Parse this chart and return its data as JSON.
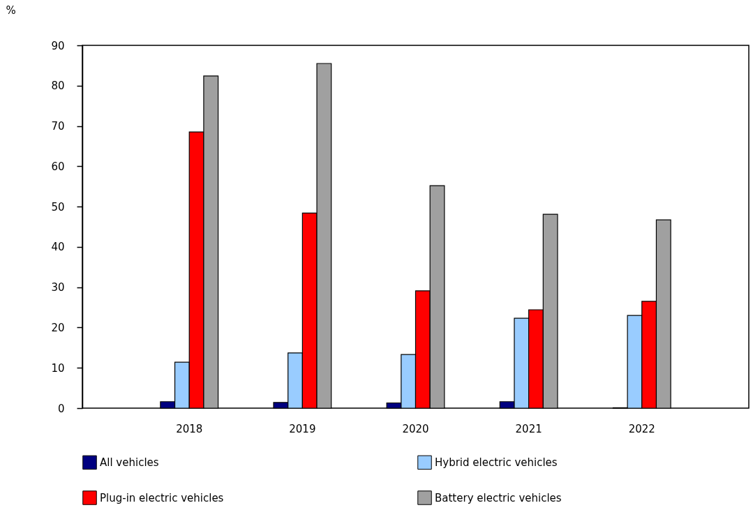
{
  "chart_data": {
    "type": "bar",
    "ylabel": "%",
    "categories": [
      "2018",
      "2019",
      "2020",
      "2021",
      "2022"
    ],
    "series": [
      {
        "name": "All vehicles",
        "color": "#000080",
        "values": [
          1.6,
          1.4,
          1.3,
          1.6,
          0.1
        ]
      },
      {
        "name": "Hybrid electric vehicles",
        "color": "#99ccff",
        "values": [
          11.4,
          13.7,
          13.3,
          22.3,
          23.0
        ]
      },
      {
        "name": "Plug-in electric vehicles",
        "color": "#ff0000",
        "values": [
          68.5,
          48.4,
          29.1,
          24.4,
          26.5
        ]
      },
      {
        "name": "Battery electric vehicles",
        "color": "#a0a0a0",
        "values": [
          82.4,
          85.5,
          55.2,
          48.1,
          46.7
        ]
      }
    ],
    "ylim": [
      0,
      90
    ],
    "yticks": [
      0,
      10,
      20,
      30,
      40,
      50,
      60,
      70,
      80,
      90
    ],
    "grid": false,
    "legend": "bottom"
  }
}
